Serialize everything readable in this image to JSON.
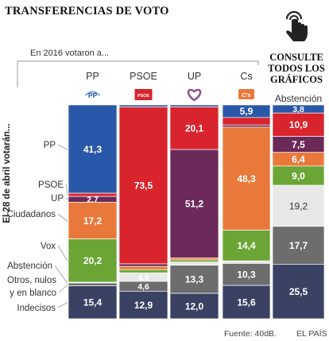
{
  "title": "TRANSFERENCIAS DE VOTO",
  "cta": {
    "text": "CONSULTE TODOS LOS GRÁFICOS",
    "icon": "hand-pointer-icon"
  },
  "footer": {
    "source": "Fuente: 40dB.",
    "brand": "EL PAÍS"
  },
  "colors": {
    "PP": "#2a58a8",
    "PSOE": "#d9232d",
    "UP": "#6c2a59",
    "Cs": "#e9793a",
    "Vox": "#6aa535",
    "Abstención": "#e8e8e8",
    "Otros": "#6d6d6d",
    "Indecisos": "#3a4163",
    "no_label": "#888888"
  },
  "chart_data": {
    "type": "bar",
    "stacked": true,
    "normalized": true,
    "x_header": "En 2016 votaron a...",
    "y_header": "El 28 de abril votarán...",
    "categories": [
      "PP",
      "PSOE",
      "UP",
      "Cs",
      "Abstención"
    ],
    "party_logos": [
      "PP",
      "PSOE",
      "UP",
      "C's",
      ""
    ],
    "series": [
      {
        "name": "PP",
        "values": [
          41.3,
          1.0,
          1.0,
          5.9,
          3.8
        ]
      },
      {
        "name": "PSOE",
        "values": [
          1.5,
          73.5,
          20.1,
          3.5,
          10.9
        ]
      },
      {
        "name": "UP",
        "values": [
          2.7,
          1.2,
          51.2,
          1.0,
          7.5
        ]
      },
      {
        "name": "Ciudadanos",
        "values": [
          17.2,
          1.5,
          1.0,
          48.3,
          6.4
        ]
      },
      {
        "name": "Vox",
        "values": [
          20.2,
          1.5,
          1.0,
          14.4,
          9.0
        ]
      },
      {
        "name": "Abstención",
        "values": [
          0.4,
          4.0,
          1.5,
          1.2,
          19.2
        ]
      },
      {
        "name": "Otros, nulos y en blanco",
        "values": [
          1.3,
          4.6,
          13.3,
          10.3,
          17.7
        ]
      },
      {
        "name": "Indecisos",
        "values": [
          15.4,
          12.9,
          12.0,
          15.6,
          25.5
        ]
      }
    ],
    "value_labels": [
      [
        "41,3",
        "",
        "",
        "5,9",
        "3,8"
      ],
      [
        "",
        "73,5",
        "20,1",
        "",
        "10,9"
      ],
      [
        "2,7",
        "",
        "51,2",
        "",
        "7,5"
      ],
      [
        "17,2",
        "",
        "",
        "48,3",
        "6,4"
      ],
      [
        "20,2",
        "",
        "",
        "14,4",
        "9,0"
      ],
      [
        "",
        "4,0",
        "",
        "",
        "19,2"
      ],
      [
        "",
        "4,6",
        "13,3",
        "10,3",
        "17,7"
      ],
      [
        "15,4",
        "12,9",
        "12,0",
        "15,6",
        "25,5"
      ]
    ],
    "row_labels": [
      "PP",
      "PSOE",
      "UP",
      "Ciudadanos",
      "Vox",
      "Abstención",
      "Otros, nulos y en blanco",
      "Indecisos"
    ]
  }
}
